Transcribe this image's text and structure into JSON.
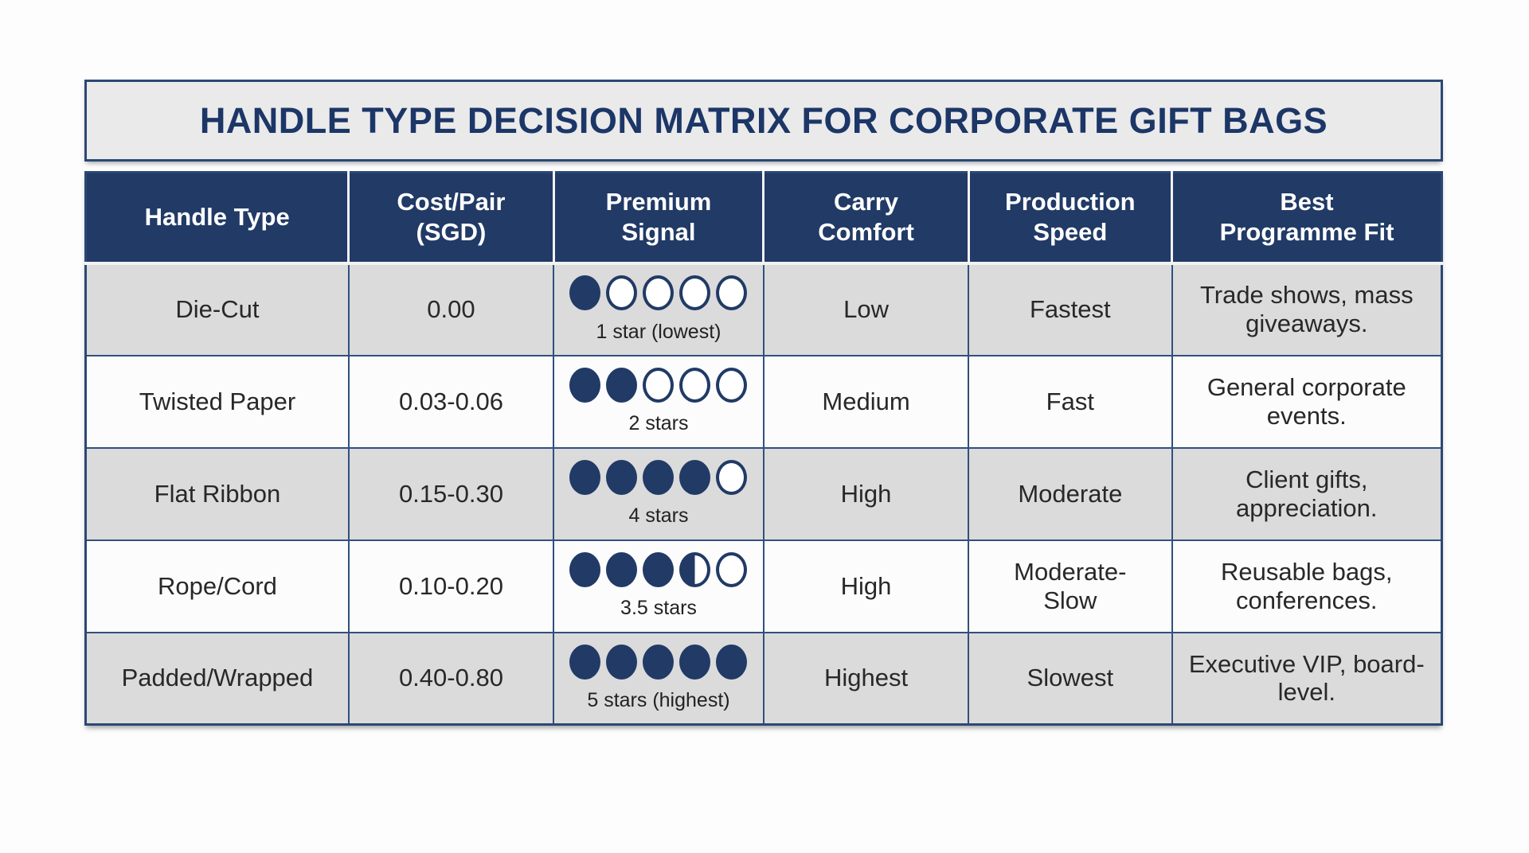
{
  "title": "HANDLE TYPE DECISION MATRIX FOR CORPORATE GIFT BAGS",
  "colors": {
    "header_navy": "#213A66",
    "title_text_navy": "#1C3667",
    "grid_line_navy": "#30507F",
    "row_gray": "#DBDBDB",
    "row_white": "#FCFCFC",
    "dot_navy": "#213A66"
  },
  "table": {
    "columns": [
      "Handle Type",
      "Cost/Pair\n(SGD)",
      "Premium\nSignal",
      "Carry\nComfort",
      "Production\nSpeed",
      "Best\nProgramme Fit"
    ],
    "rows": [
      {
        "handle_type": "Die-Cut",
        "cost_pair_sgd": "0.00",
        "premium_signal": {
          "rating": 1,
          "max": 5,
          "label": "1 star (lowest)"
        },
        "carry_comfort": "Low",
        "production_speed": "Fastest",
        "best_programme_fit": "Trade shows, mass giveaways."
      },
      {
        "handle_type": "Twisted Paper",
        "cost_pair_sgd": "0.03-0.06",
        "premium_signal": {
          "rating": 2,
          "max": 5,
          "label": "2 stars"
        },
        "carry_comfort": "Medium",
        "production_speed": "Fast",
        "best_programme_fit": "General corporate events."
      },
      {
        "handle_type": "Flat Ribbon",
        "cost_pair_sgd": "0.15-0.30",
        "premium_signal": {
          "rating": 4,
          "max": 5,
          "label": "4 stars"
        },
        "carry_comfort": "High",
        "production_speed": "Moderate",
        "best_programme_fit": "Client gifts, appreciation."
      },
      {
        "handle_type": "Rope/Cord",
        "cost_pair_sgd": "0.10-0.20",
        "premium_signal": {
          "rating": 3.5,
          "max": 5,
          "label": "3.5 stars"
        },
        "carry_comfort": "High",
        "production_speed": "Moderate-Slow",
        "best_programme_fit": "Reusable bags, conferences."
      },
      {
        "handle_type": "Padded/Wrapped",
        "cost_pair_sgd": "0.40-0.80",
        "premium_signal": {
          "rating": 5,
          "max": 5,
          "label": "5 stars (highest)"
        },
        "carry_comfort": "Highest",
        "production_speed": "Slowest",
        "best_programme_fit": "Executive VIP, board-level."
      }
    ]
  }
}
